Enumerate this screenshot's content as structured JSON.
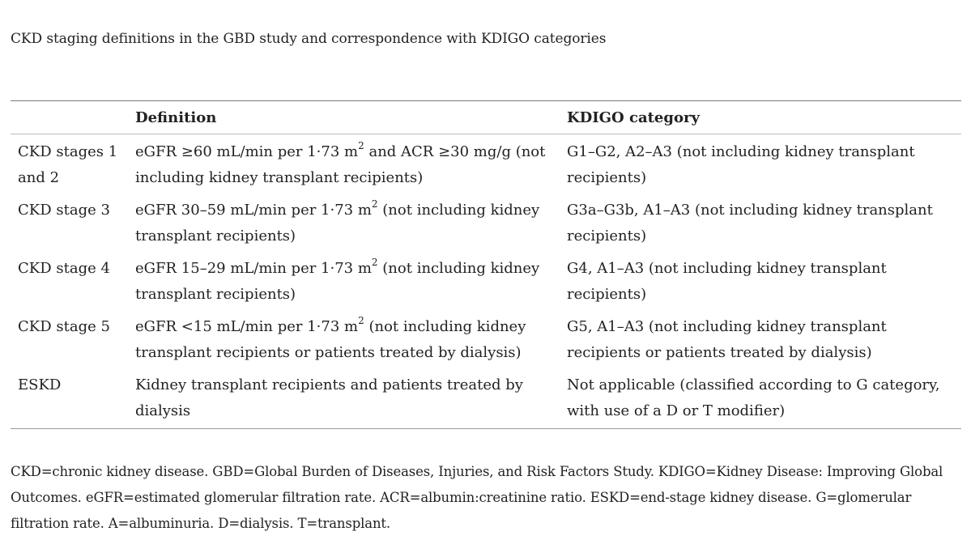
{
  "caption": "CKD staging definitions in the GBD study and correspondence with KDIGO categories",
  "table": {
    "headers": [
      "",
      "Definition",
      "KDIGO category"
    ],
    "rows": [
      {
        "stage": "CKD stages 1 and 2",
        "definition_pre": "eGFR ≥60 mL/min per 1·73 m",
        "definition_sup": "2",
        "definition_post": " and ACR ≥30 mg/g (not including kidney transplant recipients)",
        "kdigo": "G1–G2, A2–A3 (not including kidney transplant recipients)"
      },
      {
        "stage": "CKD stage 3",
        "definition_pre": "eGFR 30–59 mL/min per 1·73 m",
        "definition_sup": "2",
        "definition_post": " (not including kidney transplant recipients)",
        "kdigo": "G3a–G3b, A1–A3 (not including kidney transplant recipients)"
      },
      {
        "stage": "CKD stage 4",
        "definition_pre": "eGFR 15–29 mL/min per 1·73 m",
        "definition_sup": "2",
        "definition_post": " (not including kidney transplant recipients)",
        "kdigo": "G4, A1–A3 (not including kidney transplant recipients)"
      },
      {
        "stage": "CKD stage 5",
        "definition_pre": "eGFR <15 mL/min per 1·73 m",
        "definition_sup": "2",
        "definition_post": " (not including kidney transplant recipients or patients treated by dialysis)",
        "kdigo": "G5, A1–A3 (not including kidney transplant recipients or patients treated by dialysis)"
      },
      {
        "stage": "ESKD",
        "definition_pre": "Kidney transplant recipients and patients treated by dialysis",
        "definition_sup": "",
        "definition_post": "",
        "kdigo": "Not applicable (classified according to G category, with use of a D or T modifier)"
      }
    ]
  },
  "footnote": "CKD=chronic kidney disease. GBD=Global Burden of Diseases, Injuries, and Risk Factors Study. KDIGO=Kidney Disease: Improving Global Outcomes. eGFR=estimated glomerular filtration rate. ACR=albumin:creatinine ratio. ESKD=end-stage kidney disease. G=glomerular filtration rate. A=albuminuria. D=dialysis. T=transplant."
}
